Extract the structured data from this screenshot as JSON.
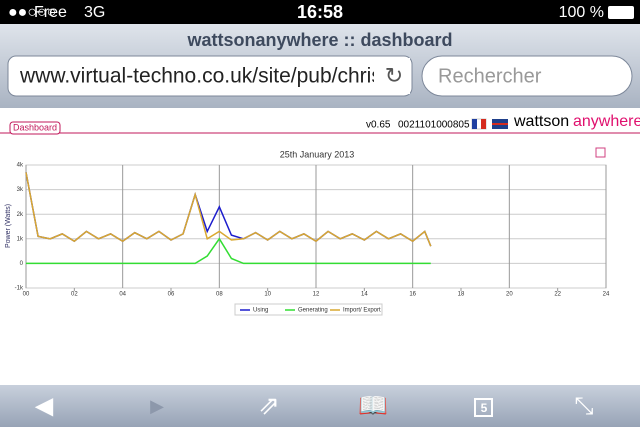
{
  "status_bar": {
    "carrier": "Free",
    "network": "3G",
    "time": "16:58",
    "battery": "100 %"
  },
  "browser": {
    "page_title": "wattsonanywhere :: dashboard",
    "url": "www.virtual-techno.co.uk/site/pub/chris",
    "search_placeholder": "Rechercher",
    "tab_count": "5"
  },
  "page": {
    "tab": "Dashboard",
    "version": "v0.65",
    "device_id": "0021101000805",
    "brand_1": "wattson",
    "brand_2": "anywhere"
  },
  "chart_data": {
    "type": "line",
    "title": "25th January 2013",
    "y_label": "Power (Watts)",
    "x": [
      0,
      0.5,
      1,
      1.5,
      2,
      2.5,
      3,
      3.5,
      4,
      4.5,
      5,
      5.5,
      6,
      6.5,
      7,
      7.5,
      8,
      8.5,
      9,
      9.5,
      10,
      10.5,
      11,
      11.5,
      12,
      12.5,
      13,
      13.5,
      14,
      14.5,
      15,
      15.5,
      16,
      16.5,
      16.75
    ],
    "series": [
      {
        "name": "Using",
        "color": "#1c1ccc",
        "values": [
          3700,
          1100,
          1000,
          1200,
          900,
          1300,
          1000,
          1200,
          900,
          1250,
          1000,
          1300,
          950,
          1200,
          2800,
          1300,
          2300,
          1150,
          1000,
          1250,
          950,
          1300,
          1000,
          1200,
          900,
          1300,
          1000,
          1200,
          950,
          1300,
          1000,
          1200,
          900,
          1300,
          700
        ]
      },
      {
        "name": "Generating",
        "color": "#33dd33",
        "values": [
          0,
          0,
          0,
          0,
          0,
          0,
          0,
          0,
          0,
          0,
          0,
          0,
          0,
          0,
          0,
          300,
          1000,
          200,
          0,
          0,
          0,
          0,
          0,
          0,
          0,
          0,
          0,
          0,
          0,
          0,
          0,
          0,
          0,
          0,
          0
        ]
      },
      {
        "name": "Import/ Export",
        "color": "#d9a830",
        "values": [
          3700,
          1100,
          1000,
          1200,
          900,
          1300,
          1000,
          1200,
          900,
          1250,
          1000,
          1300,
          950,
          1200,
          2800,
          1000,
          1300,
          950,
          1000,
          1250,
          950,
          1300,
          1000,
          1200,
          900,
          1300,
          1000,
          1200,
          950,
          1300,
          1000,
          1200,
          900,
          1300,
          700
        ]
      }
    ],
    "xlim": [
      0,
      24
    ],
    "xticks": [
      {
        "value": 0,
        "label": "00"
      },
      {
        "value": 2,
        "label": "02"
      },
      {
        "value": 4,
        "label": "04"
      },
      {
        "value": 6,
        "label": "06"
      },
      {
        "value": 8,
        "label": "08"
      },
      {
        "value": 10,
        "label": "10"
      },
      {
        "value": 12,
        "label": "12"
      },
      {
        "value": 14,
        "label": "14"
      },
      {
        "value": 16,
        "label": "16"
      },
      {
        "value": 18,
        "label": "18"
      },
      {
        "value": 20,
        "label": "20"
      },
      {
        "value": 22,
        "label": "22"
      },
      {
        "value": 24,
        "label": "24"
      }
    ],
    "ylim": [
      -1000,
      4000
    ],
    "yticks": [
      {
        "value": -1000,
        "label": "-1k"
      },
      {
        "value": 0,
        "label": "0"
      },
      {
        "value": 1000,
        "label": "1k"
      },
      {
        "value": 2000,
        "label": "2k"
      },
      {
        "value": 3000,
        "label": "3k"
      },
      {
        "value": 4000,
        "label": "4k"
      }
    ],
    "grid": true
  }
}
